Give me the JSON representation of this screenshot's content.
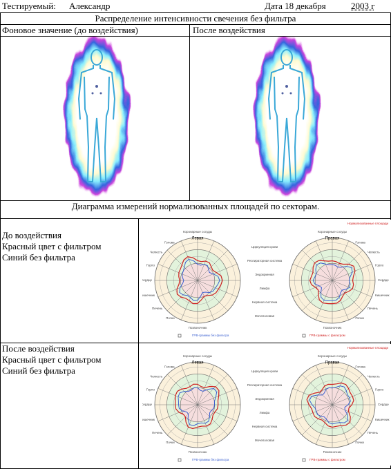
{
  "header": {
    "subject_label": "Тестируемый:",
    "subject_name": "Александр",
    "date": "Дата 18 декабря",
    "year": "2003 г"
  },
  "table": {
    "title": "Распределение интенсивности свечения без фильтра",
    "columns": [
      "Фоновое значение (до воздействия)",
      "После воздействия"
    ],
    "diagram_title": "Диаграмма измерений нормализованных площадей по секторам.",
    "rows": [
      {
        "lines": [
          "До воздействия",
          "Красный цвет с фильтром",
          "Синий без фильтра"
        ]
      },
      {
        "lines": [
          "После воздействия",
          "Красный цвет с фильтром",
          "Синий без фильтра"
        ]
      }
    ]
  },
  "charts": {
    "corner": "Нормализованные площади",
    "left_title": "Левая",
    "right_title": "Правая",
    "top_label": "Коронарные сосуды",
    "bottom_label": "Позвоночник",
    "outer_labels": [
      "Голова",
      "Челюсть",
      "Горло",
      "Сердце",
      "Кишечник",
      "Печень",
      "Почки"
    ],
    "middle_labels": [
      "Циркуляция крови",
      "Респираторная система",
      "Эндокринная",
      "Лимфа",
      "Нервная система",
      "Мочеполовая"
    ],
    "legend_blue": "ГРВ-граммы без фильтра",
    "legend_red": "ГРВ-граммы с фильтром"
  }
}
